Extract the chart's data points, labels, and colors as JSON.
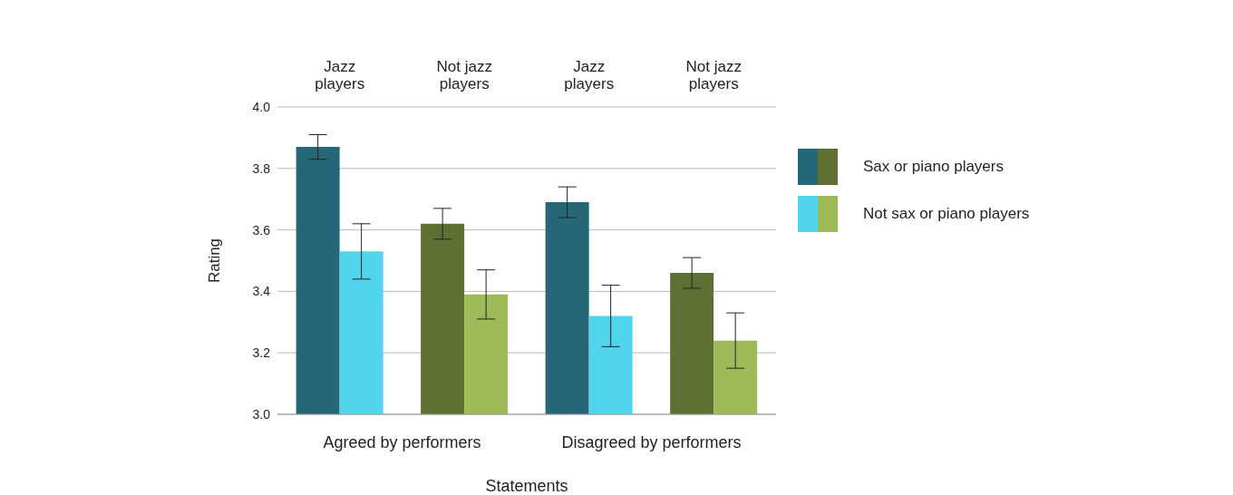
{
  "chart_data": {
    "type": "bar",
    "xlabel": "Statements",
    "ylabel": "Rating",
    "categories": [
      "Jazz players",
      "Not jazz players",
      "Jazz players",
      "Not jazz players"
    ],
    "series": [
      {
        "name": "Sax or piano players",
        "colors": [
          "#256776",
          "#5e7033",
          "#256776",
          "#5e7033"
        ],
        "values": [
          3.87,
          3.62,
          3.69,
          3.46
        ],
        "errors": [
          0.04,
          0.05,
          0.05,
          0.05
        ]
      },
      {
        "name": "Not sax or piano players",
        "colors": [
          "#52d3ee",
          "#9dba59",
          "#52d3ee",
          "#9dba59"
        ],
        "values": [
          3.53,
          3.39,
          3.32,
          3.24
        ],
        "errors": [
          0.09,
          0.08,
          0.1,
          0.09
        ]
      }
    ],
    "ylim": [
      3,
      4
    ],
    "yticks": [
      {
        "value": 3,
        "label": "3.0"
      },
      {
        "value": 3.2,
        "label": "3.2"
      },
      {
        "value": 3.4,
        "label": "3.4"
      },
      {
        "value": 3.6,
        "label": "3.6"
      },
      {
        "value": 3.8,
        "label": "3.8"
      },
      {
        "value": 4,
        "label": "4.0"
      }
    ],
    "grid": "y",
    "legend": "right",
    "annotations": [
      "Agreed by performers",
      "Disagreed by performers"
    ]
  }
}
